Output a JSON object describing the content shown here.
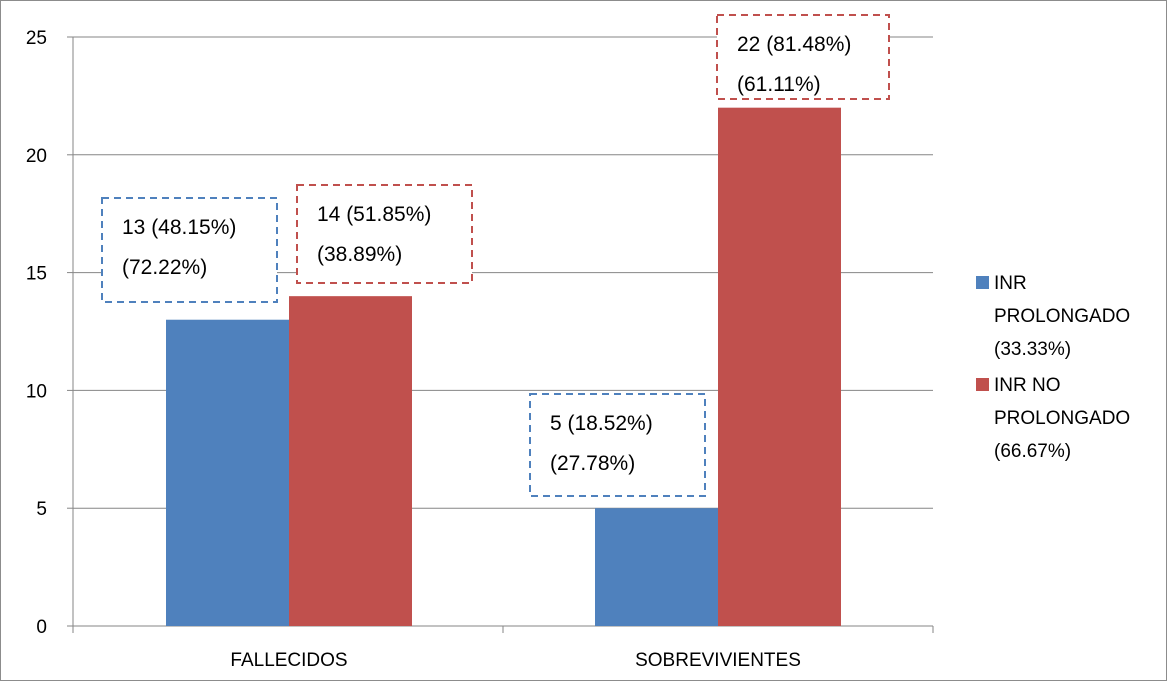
{
  "chart_data": {
    "type": "bar",
    "title": "",
    "xlabel": "",
    "ylabel": "",
    "categories": [
      "FALLECIDOS",
      "SOBREVIVIENTES"
    ],
    "ylim": [
      0,
      25
    ],
    "yticks": [
      "0",
      "5",
      "10",
      "15",
      "20",
      "25"
    ],
    "grid": true,
    "legend_position": "right",
    "series": [
      {
        "name": "INR PROLONGADO (33.33%)",
        "legend_lines": [
          "INR",
          "PROLONGADO",
          "(33.33%)"
        ],
        "color": "#4F81BD",
        "values": [
          13,
          5
        ],
        "data_labels": [
          [
            "13 (48.15%)",
            "(72.22%)"
          ],
          [
            "5 (18.52%)",
            "(27.78%)"
          ]
        ]
      },
      {
        "name": "INR NO PROLONGADO (66.67%)",
        "legend_lines": [
          "INR NO",
          "PROLONGADO",
          "(66.67%)"
        ],
        "color": "#C0504D",
        "values": [
          14,
          22
        ],
        "data_labels": [
          [
            "14 (51.85%)",
            "(38.89%)"
          ],
          [
            "22 (81.48%)",
            "(61.11%)"
          ]
        ]
      }
    ]
  }
}
